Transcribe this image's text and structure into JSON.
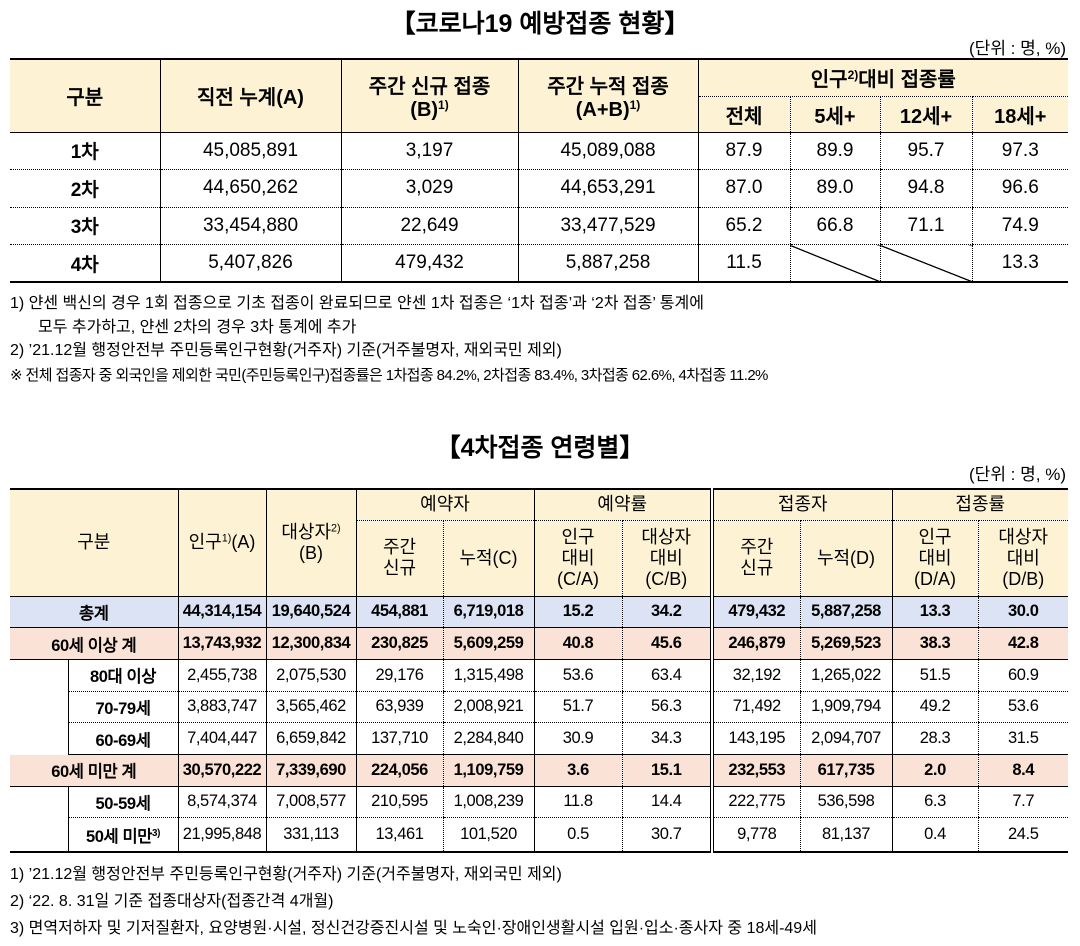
{
  "table1": {
    "title": "【코로나19 예방접종 현황】",
    "unit": "(단위 : 명, %)",
    "header": [
      [
        [
          "구분"
        ],
        [
          "직전 누계(A)"
        ],
        [
          "주간 신규 접종",
          {
            "text": "(B)",
            "sup": "1)"
          }
        ],
        [
          "주간 누적 접종",
          {
            "text": "(A+B)",
            "sup": "1)"
          }
        ],
        [
          {
            "text": "인구",
            "sup": "2)",
            "after": "대비 접종률"
          }
        ]
      ],
      [
        [
          "전체"
        ],
        [
          "5세+"
        ],
        [
          "12세+"
        ],
        [
          "18세+"
        ]
      ]
    ],
    "rows": [
      {
        "label": "1차",
        "cells": [
          "45,085,891",
          "3,197",
          "45,089,088",
          "87.9",
          "89.9",
          "95.7",
          "97.3"
        ]
      },
      {
        "label": "2차",
        "cells": [
          "44,650,262",
          "3,029",
          "44,653,291",
          "87.0",
          "89.0",
          "94.8",
          "96.6"
        ]
      },
      {
        "label": "3차",
        "cells": [
          "33,454,880",
          "22,649",
          "33,477,529",
          "65.2",
          "66.8",
          "71.1",
          "74.9"
        ]
      },
      {
        "label": "4차",
        "cells": [
          "5,407,826",
          "479,432",
          "5,887,258",
          "11.5",
          null,
          null,
          "13.3"
        ]
      }
    ],
    "header_bg": "#fdf3d4"
  },
  "notes1": [
    [
      "1) 얀센 백신의 경우 1회 접종으로 기초 접종이 완료되므로 얀센 1차 접종은 ‘1차 접종’과 ‘2차 접종’ 통계에",
      "모두 추가하고, 얀센 2차의 경우 3차 통계에 추가"
    ],
    [
      "2) ’21.12월 행정안전부 주민등록인구현황(거주자) 기준(거주불명자, 재외국민 제외)"
    ],
    [
      "※ 전체 접종자 중 외국인을 제외한 국민(주민등록인구)접종률은 1차접종 84.2%, 2차접종 83.4%, 3차접종 62.6%, 4차접종 11.2%"
    ]
  ],
  "table2": {
    "title": "【4차접종 연령별】",
    "unit": "(단위 : 명, %)",
    "header": [
      [
        [
          "구분"
        ],
        [
          {
            "text": "인구",
            "sup": "1)",
            "after": "(A)"
          }
        ],
        [
          {
            "text": "대상자",
            "sup": "2)"
          },
          "(B)"
        ],
        [
          "예약자"
        ],
        [
          "예약률"
        ],
        [
          "접종자"
        ],
        [
          "접종률"
        ]
      ],
      [
        [
          "주간",
          "신규"
        ],
        [
          "누적(C)"
        ],
        [
          "인구",
          "대비",
          "(C/A)"
        ],
        [
          "대상자",
          "대비",
          "(C/B)"
        ],
        [
          "주간",
          "신규"
        ],
        [
          "누적(D)"
        ],
        [
          "인구",
          "대비",
          "(D/A)"
        ],
        [
          "대상자",
          "대비",
          "(D/B)"
        ]
      ]
    ],
    "rows": [
      {
        "label": "총계",
        "bg": "#dce3f4",
        "cells": [
          "44,314,154",
          "19,640,524",
          "454,881",
          "6,719,018",
          "15.2",
          "34.2",
          "479,432",
          "5,887,258",
          "13.3",
          "30.0"
        ]
      },
      {
        "label": "60세 이상 계",
        "bg": "#fbe2d6",
        "cells": [
          "13,743,932",
          "12,300,834",
          "230,825",
          "5,609,259",
          "40.8",
          "45.6",
          "246,879",
          "5,269,523",
          "38.3",
          "42.8"
        ]
      },
      {
        "label": "80대 이상",
        "cells": [
          "2,455,738",
          "2,075,530",
          "29,176",
          "1,315,498",
          "53.6",
          "63.4",
          "32,192",
          "1,265,022",
          "51.5",
          "60.9"
        ]
      },
      {
        "label": "70-79세",
        "cells": [
          "3,883,747",
          "3,565,462",
          "63,939",
          "2,008,921",
          "51.7",
          "56.3",
          "71,492",
          "1,909,794",
          "49.2",
          "53.6"
        ]
      },
      {
        "label": "60-69세",
        "cells": [
          "7,404,447",
          "6,659,842",
          "137,710",
          "2,284,840",
          "30.9",
          "34.3",
          "143,195",
          "2,094,707",
          "28.3",
          "31.5"
        ]
      },
      {
        "label": "60세 미만 계",
        "bg": "#fbe2d6",
        "cells": [
          "30,570,222",
          "7,339,690",
          "224,056",
          "1,109,759",
          "3.6",
          "15.1",
          "232,553",
          "617,735",
          "2.0",
          "8.4"
        ]
      },
      {
        "label": "50-59세",
        "cells": [
          "8,574,374",
          "7,008,577",
          "210,595",
          "1,008,239",
          "11.8",
          "14.4",
          "222,775",
          "536,598",
          "6.3",
          "7.7"
        ]
      },
      {
        "label": {
          "text": "50세 미만",
          "sup": "3)"
        },
        "cells": [
          "21,995,848",
          "331,113",
          "13,461",
          "101,520",
          "0.5",
          "30.7",
          "9,778",
          "81,137",
          "0.4",
          "24.5"
        ]
      }
    ],
    "header_bg": "#fdf3d4"
  },
  "notes2": [
    [
      "1) ’21.12월 행정안전부 주민등록인구현황(거주자) 기준(거주불명자, 재외국민 제외)"
    ],
    [
      "2) ‘22. 8. 31일 기준 접종대상자(접종간격 4개월)"
    ],
    [
      "3) 면역저하자 및 기저질환자, 요양병원·시설, 정신건강증진시설 및 노숙인·장애인생활시설 입원·입소·종사자 중 18세-49세"
    ]
  ]
}
